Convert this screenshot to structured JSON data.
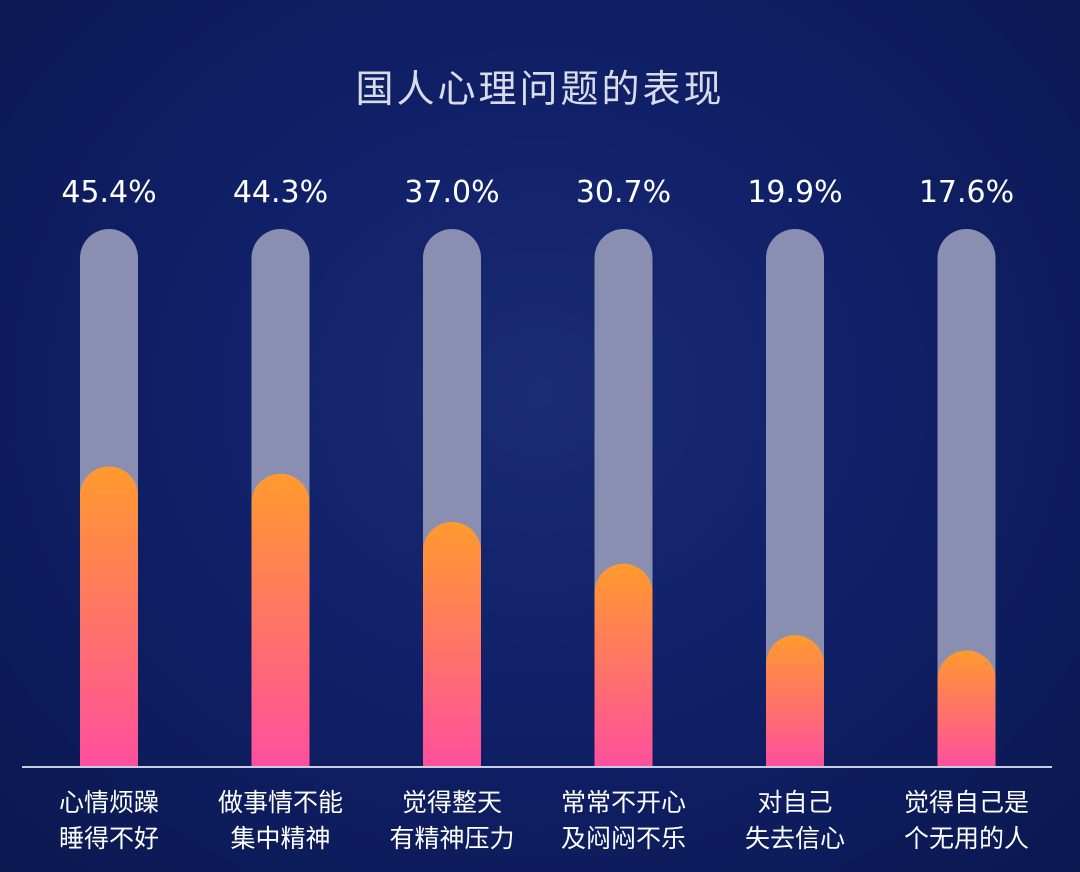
{
  "chart_data": {
    "type": "bar",
    "title": "国人心理问题的表现",
    "categories": [
      [
        "心情烦躁",
        "睡得不好"
      ],
      [
        "做事情不能",
        "集中精神"
      ],
      [
        "觉得整天",
        "有精神压力"
      ],
      [
        "常常不开心",
        "及闷闷不乐"
      ],
      [
        "对自己",
        "失去信心"
      ],
      [
        "觉得自己是",
        "个无用的人"
      ]
    ],
    "values": [
      45.4,
      44.3,
      37.0,
      30.7,
      19.9,
      17.6
    ],
    "value_labels": [
      "45.4%",
      "44.3%",
      "37.0%",
      "30.7%",
      "19.9%",
      "17.6%"
    ],
    "ylim": [
      0,
      100
    ],
    "grid": false,
    "legend": "none",
    "colors": {
      "background": "#0f1f63",
      "track": "#8a8fb2",
      "bar_top": "#ff9a2e",
      "bar_bottom": "#ff4f9e",
      "axis": "#c9cde0",
      "text": "#ffffff"
    }
  }
}
